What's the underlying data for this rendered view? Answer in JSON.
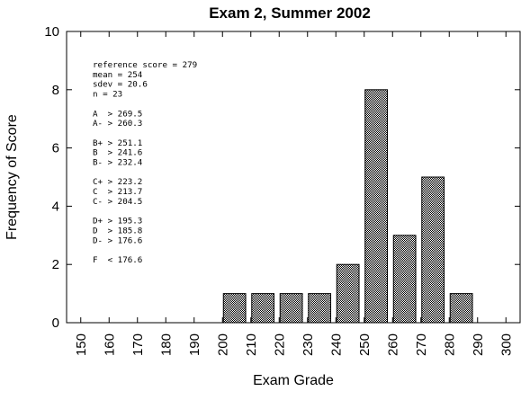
{
  "chart_data": {
    "type": "bar",
    "title": "Exam 2,  Summer 2002",
    "xlabel": "Exam Grade",
    "ylabel": "Frequency of Score",
    "xlim": [
      145,
      305
    ],
    "ylim": [
      0,
      10
    ],
    "x_ticks": [
      "150",
      "160",
      "170",
      "180",
      "190",
      "200",
      "210",
      "220",
      "230",
      "240",
      "250",
      "260",
      "270",
      "280",
      "290",
      "300"
    ],
    "y_ticks": [
      "0",
      "2",
      "4",
      "6",
      "8",
      "10"
    ],
    "bin_width": 10,
    "bins": [
      {
        "x": 200,
        "value": 1
      },
      {
        "x": 210,
        "value": 1
      },
      {
        "x": 220,
        "value": 1
      },
      {
        "x": 230,
        "value": 1
      },
      {
        "x": 240,
        "value": 2
      },
      {
        "x": 250,
        "value": 8
      },
      {
        "x": 260,
        "value": 3
      },
      {
        "x": 270,
        "value": 5
      },
      {
        "x": 280,
        "value": 1
      }
    ],
    "bar_fill": "#a9a9a9",
    "bar_stroke": "#000000",
    "grid": false,
    "legend": "none",
    "annotation": [
      "reference score = 279",
      "mean = 254",
      "sdev = 20.6",
      "n = 23",
      "",
      "A  > 269.5",
      "A- > 260.3",
      "",
      "B+ > 251.1",
      "B  > 241.6",
      "B- > 232.4",
      "",
      "C+ > 223.2",
      "C  > 213.7",
      "C- > 204.5",
      "",
      "D+ > 195.3",
      "D  > 185.8",
      "D- > 176.6",
      "",
      "F  < 176.6"
    ]
  }
}
